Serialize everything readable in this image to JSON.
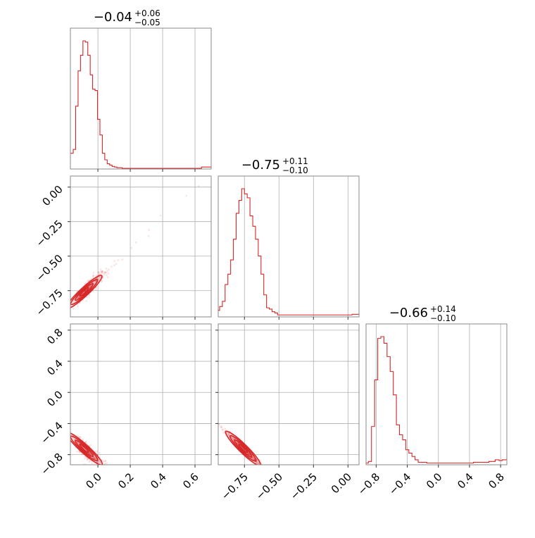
{
  "chart_data": {
    "type": "corner",
    "color": "#d62728",
    "parameters": [
      {
        "title": "−0.04",
        "title_plus": "+0.06",
        "title_minus": "−0.05",
        "range": [
          -0.17,
          0.7
        ],
        "ticks": [
          0.0,
          0.2,
          0.4,
          0.6
        ],
        "tick_labels": [
          "0.0",
          "0.2",
          "0.4",
          "0.6"
        ],
        "hist": {
          "x": [
            -0.16,
            -0.145,
            -0.13,
            -0.115,
            -0.1,
            -0.085,
            -0.07,
            -0.055,
            -0.04,
            -0.025,
            -0.01,
            0.005,
            0.02,
            0.035,
            0.05,
            0.065,
            0.08,
            0.095,
            0.11,
            0.125,
            0.14,
            0.16,
            0.2,
            0.3,
            0.4,
            0.5,
            0.6,
            0.68
          ],
          "density": [
            0.12,
            0.15,
            0.48,
            0.75,
            0.87,
            0.98,
            0.97,
            0.87,
            0.72,
            0.61,
            0.6,
            0.38,
            0.26,
            0.12,
            0.07,
            0.04,
            0.03,
            0.02,
            0.015,
            0.01,
            0.01,
            0.005,
            0.005,
            0.005,
            0.005,
            0.005,
            0.005,
            0.015
          ]
        }
      },
      {
        "title": "−0.75",
        "title_plus": "+0.11",
        "title_minus": "−0.10",
        "range": [
          -0.94,
          0.08
        ],
        "ticks": [
          -0.75,
          -0.5,
          -0.25,
          0.0
        ],
        "tick_labels": [
          "−0.75",
          "−0.50",
          "−0.25",
          "0.00"
        ],
        "hist": {
          "x": [
            -0.94,
            -0.92,
            -0.9,
            -0.88,
            -0.86,
            -0.84,
            -0.82,
            -0.8,
            -0.78,
            -0.76,
            -0.74,
            -0.72,
            -0.7,
            -0.68,
            -0.66,
            -0.64,
            -0.62,
            -0.6,
            -0.58,
            -0.56,
            -0.54,
            -0.52,
            -0.5,
            -0.48,
            -0.46,
            -0.44,
            -0.4,
            -0.3,
            -0.2,
            -0.1,
            0.0,
            0.06
          ],
          "density": [
            0.05,
            0.08,
            0.12,
            0.25,
            0.33,
            0.44,
            0.6,
            0.8,
            0.9,
            0.99,
            0.95,
            0.92,
            0.78,
            0.7,
            0.6,
            0.47,
            0.33,
            0.17,
            0.07,
            0.06,
            0.04,
            0.03,
            0.015,
            0.015,
            0.015,
            0.015,
            0.015,
            0.015,
            0.015,
            0.015,
            0.015,
            0.02
          ]
        }
      },
      {
        "title": "−0.66",
        "title_plus": "+0.14",
        "title_minus": "−0.10",
        "range": [
          -0.93,
          0.88
        ],
        "ticks": [
          -0.8,
          -0.4,
          0.0,
          0.4,
          0.8
        ],
        "tick_labels": [
          "−0.8",
          "−0.4",
          "0.0",
          "0.4",
          "0.8"
        ],
        "hist": {
          "x": [
            -0.92,
            -0.88,
            -0.84,
            -0.8,
            -0.76,
            -0.72,
            -0.68,
            -0.64,
            -0.6,
            -0.56,
            -0.52,
            -0.48,
            -0.44,
            -0.4,
            -0.36,
            -0.32,
            -0.28,
            -0.24,
            -0.2,
            -0.1,
            0.0,
            0.2,
            0.4,
            0.5,
            0.6,
            0.7,
            0.76,
            0.8,
            0.84
          ],
          "density": [
            0.01,
            0.02,
            0.23,
            0.51,
            0.76,
            0.77,
            0.73,
            0.65,
            0.56,
            0.42,
            0.24,
            0.18,
            0.15,
            0.09,
            0.07,
            0.05,
            0.03,
            0.015,
            0.015,
            0.01,
            0.01,
            0.01,
            0.01,
            0.015,
            0.015,
            0.02,
            0.03,
            0.025,
            0.03
          ]
        }
      }
    ],
    "pairs": [
      {
        "x_param": 0,
        "y_param": 1,
        "corr": 0.93,
        "y_ticks": [
          0.0,
          -0.25,
          -0.5,
          -0.75
        ],
        "y_tick_labels": [
          "0.00",
          "−0.25",
          "−0.50",
          "−0.75"
        ]
      },
      {
        "x_param": 0,
        "y_param": 2,
        "corr": -0.9,
        "y_ticks": [
          0.8,
          0.4,
          0.0,
          -0.4,
          -0.8
        ],
        "y_tick_labels": [
          "0.8",
          "0.4",
          "0.0",
          "−0.4",
          "−0.8"
        ]
      },
      {
        "x_param": 1,
        "y_param": 2,
        "corr": -0.98,
        "y_ticks": [],
        "y_tick_labels": []
      }
    ],
    "grid": true,
    "xlabel": "",
    "ylabel": ""
  }
}
